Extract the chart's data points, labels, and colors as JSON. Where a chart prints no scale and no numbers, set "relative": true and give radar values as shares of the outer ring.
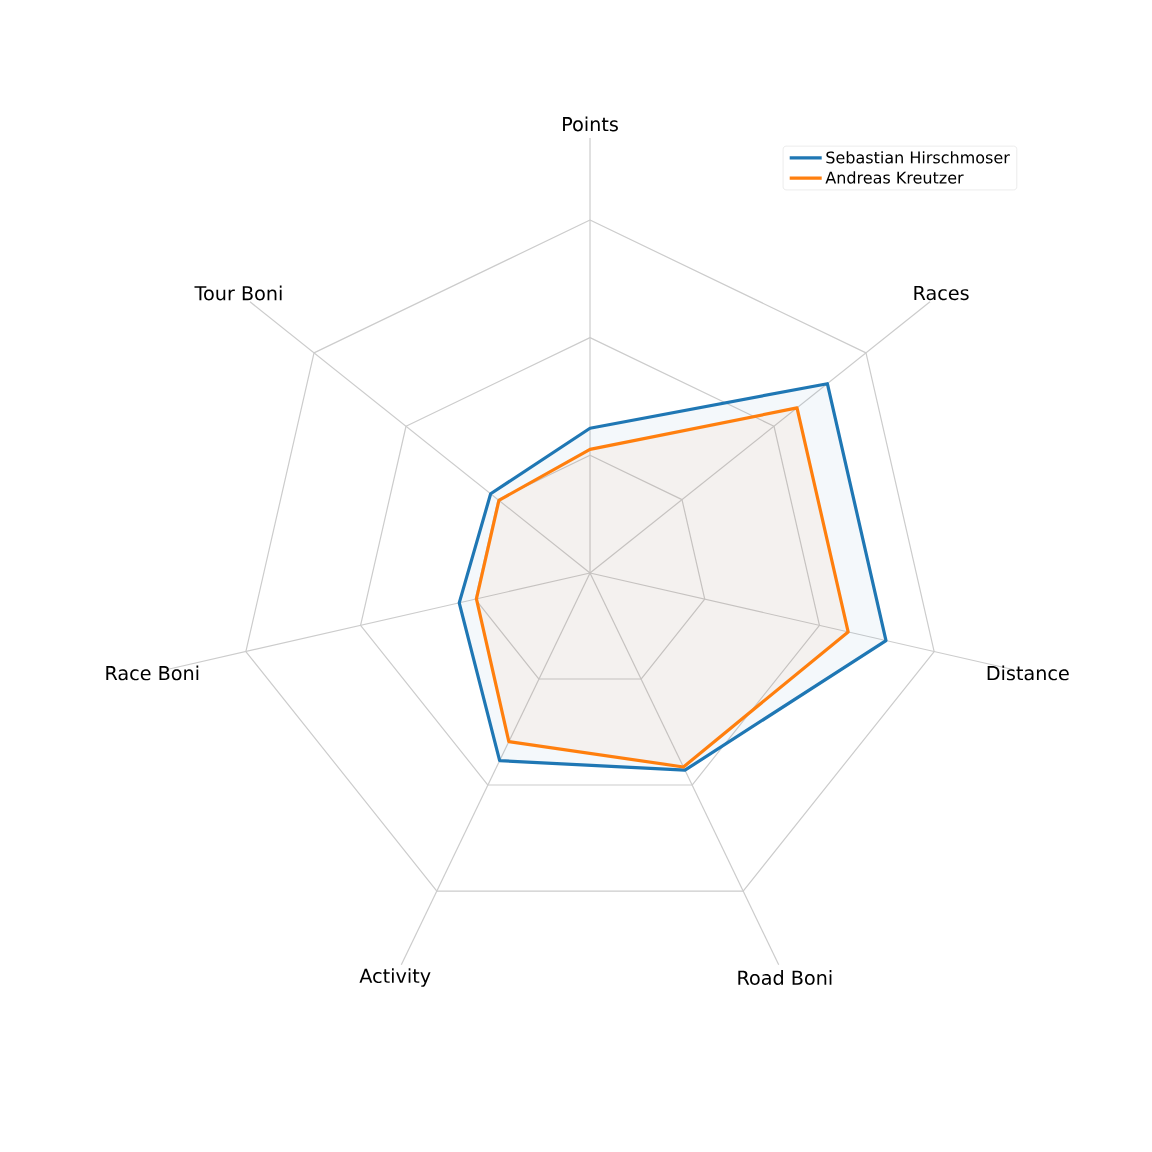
{
  "chart_data": {
    "type": "radar",
    "relative": true,
    "grid": true,
    "legend": "top right",
    "categories": [
      "Points",
      "Races",
      "Distance",
      "Road Boni",
      "Activity",
      "Race Boni",
      "Tour Boni"
    ],
    "series": [
      {
        "name": "Sebastian Hirschmoser",
        "color": "#1f77b4",
        "values": [
          0.41,
          0.86,
          0.86,
          0.62,
          0.59,
          0.38,
          0.36
        ]
      },
      {
        "name": "Andreas Kreutzer",
        "color": "#ff7f0e",
        "values": [
          0.35,
          0.75,
          0.75,
          0.61,
          0.53,
          0.33,
          0.33
        ]
      }
    ]
  }
}
